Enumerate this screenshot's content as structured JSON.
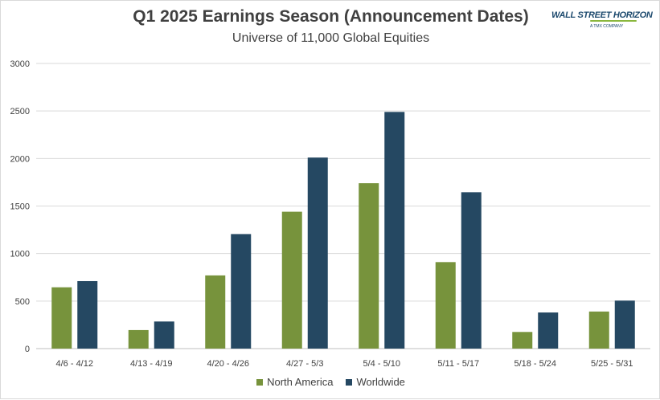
{
  "chart_data": {
    "type": "bar",
    "title": "Q1 2025 Earnings Season (Announcement Dates)",
    "subtitle": "Universe of 11,000 Global Equities",
    "categories": [
      "4/6 - 4/12",
      "4/13 - 4/19",
      "4/20 - 4/26",
      "4/27 - 5/3",
      "5/4 - 5/10",
      "5/11 - 5/17",
      "5/18 - 5/24",
      "5/25 - 5/31"
    ],
    "series": [
      {
        "name": "North America",
        "color": "#77933c",
        "values": [
          645,
          195,
          770,
          1440,
          1740,
          910,
          175,
          390
        ]
      },
      {
        "name": "Worldwide",
        "color": "#254862",
        "values": [
          710,
          285,
          1205,
          2010,
          2490,
          1645,
          380,
          505
        ]
      }
    ],
    "ylim": [
      0,
      3000
    ],
    "yticks": [
      "0",
      "500",
      "1000",
      "1500",
      "2000",
      "2500",
      "3000"
    ],
    "grid": true,
    "legend_position": "bottom"
  },
  "logo": {
    "main": "WALL STREET HORIZON",
    "sub": "A TMX COMPANY"
  }
}
